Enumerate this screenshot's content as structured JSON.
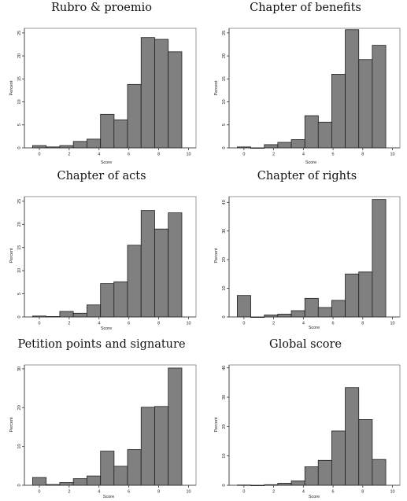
{
  "chart_data": [
    {
      "type": "bar",
      "title": "Rubro & proemio",
      "xlabel": "Score",
      "ylabel": "Percent",
      "xlim": [
        -1.0,
        10.5
      ],
      "xticks": [
        0,
        2,
        4,
        6,
        8,
        10
      ],
      "ylim": [
        0,
        26
      ],
      "yticks": [
        0,
        5,
        10,
        15,
        20,
        25
      ],
      "bin_width": 0.909,
      "bins_start": [
        -0.45,
        0.46,
        1.37,
        2.28,
        3.19,
        4.1,
        5.0,
        5.91,
        6.82,
        7.73,
        8.64,
        9.55
      ],
      "values": [
        0.5,
        0.2,
        0.5,
        1.4,
        1.9,
        7.3,
        6.1,
        13.8,
        24.0,
        23.6,
        20.9,
        null
      ]
    },
    {
      "type": "bar",
      "title": "Chapter of benefits",
      "xlabel": "Score",
      "ylabel": "Percent",
      "xlim": [
        -1.0,
        10.5
      ],
      "xticks": [
        0,
        2,
        4,
        6,
        8,
        10
      ],
      "ylim": [
        0,
        26
      ],
      "yticks": [
        0,
        5,
        10,
        15,
        20,
        25
      ],
      "bins_start": [
        -0.45,
        0.46,
        1.37,
        2.28,
        3.19,
        4.1,
        5.0,
        5.91,
        6.82,
        7.73,
        8.64,
        9.55
      ],
      "values": [
        0.2,
        0.0,
        0.7,
        1.2,
        1.8,
        7.0,
        5.6,
        16.0,
        25.7,
        19.2,
        22.3,
        null
      ]
    },
    {
      "type": "bar",
      "title": "Chapter of acts",
      "xlabel": "Score",
      "ylabel": "Percent",
      "xlim": [
        -1.0,
        10.5
      ],
      "xticks": [
        0,
        2,
        4,
        6,
        8,
        10
      ],
      "ylim": [
        0,
        26
      ],
      "yticks": [
        0,
        5,
        10,
        15,
        20,
        25
      ],
      "bins_start": [
        -0.45,
        0.46,
        1.37,
        2.28,
        3.19,
        4.1,
        5.0,
        5.91,
        6.82,
        7.73,
        8.64,
        9.55
      ],
      "values": [
        0.2,
        0.1,
        1.2,
        0.8,
        2.6,
        7.2,
        7.6,
        15.5,
        23.0,
        19.0,
        22.5,
        null
      ]
    },
    {
      "type": "bar",
      "title": "Chapter of rights",
      "xlabel": "Score",
      "ylabel": "Percent",
      "xlim": [
        -1.0,
        10.5
      ],
      "xticks": [
        0,
        2,
        4,
        6,
        8,
        10
      ],
      "ylim": [
        0,
        42
      ],
      "yticks": [
        0,
        10,
        20,
        30,
        40
      ],
      "bins_start": [
        -0.45,
        0.46,
        1.37,
        2.28,
        3.19,
        4.1,
        5.0,
        5.91,
        6.82,
        7.73,
        8.64,
        9.55
      ],
      "values": [
        7.5,
        0.0,
        0.7,
        1.0,
        2.2,
        6.5,
        3.3,
        5.8,
        15.0,
        15.7,
        41.0,
        null
      ]
    },
    {
      "type": "bar",
      "title": "Petition points and signature",
      "xlabel": "Score",
      "ylabel": "Percent",
      "xlim": [
        -1.0,
        10.5
      ],
      "xticks": [
        0,
        2,
        4,
        6,
        8,
        10
      ],
      "ylim": [
        0,
        31
      ],
      "yticks": [
        0,
        10,
        20,
        30
      ],
      "bins_start": [
        -0.45,
        0.46,
        1.37,
        2.28,
        3.19,
        4.1,
        5.0,
        5.91,
        6.82,
        7.73,
        8.64,
        9.55
      ],
      "values": [
        2.0,
        0.2,
        0.7,
        1.7,
        2.4,
        8.8,
        4.9,
        9.2,
        20.1,
        20.3,
        30.2,
        null
      ]
    },
    {
      "type": "bar",
      "title": "Global score",
      "xlabel": "Score",
      "ylabel": "Percent",
      "xlim": [
        -1.0,
        10.5
      ],
      "xticks": [
        0,
        2,
        4,
        6,
        8,
        10
      ],
      "ylim": [
        0,
        41
      ],
      "yticks": [
        0,
        10,
        20,
        30,
        40
      ],
      "bins_start": [
        -0.45,
        0.46,
        1.37,
        2.28,
        3.19,
        4.1,
        5.0,
        5.91,
        6.82,
        7.73,
        8.64,
        9.55
      ],
      "values": [
        0.1,
        0.0,
        0.2,
        0.7,
        1.5,
        6.3,
        8.5,
        18.5,
        33.3,
        22.4,
        8.8,
        null
      ]
    }
  ],
  "style": {
    "bar_fill": "#808080",
    "bar_stroke": "#202020"
  }
}
